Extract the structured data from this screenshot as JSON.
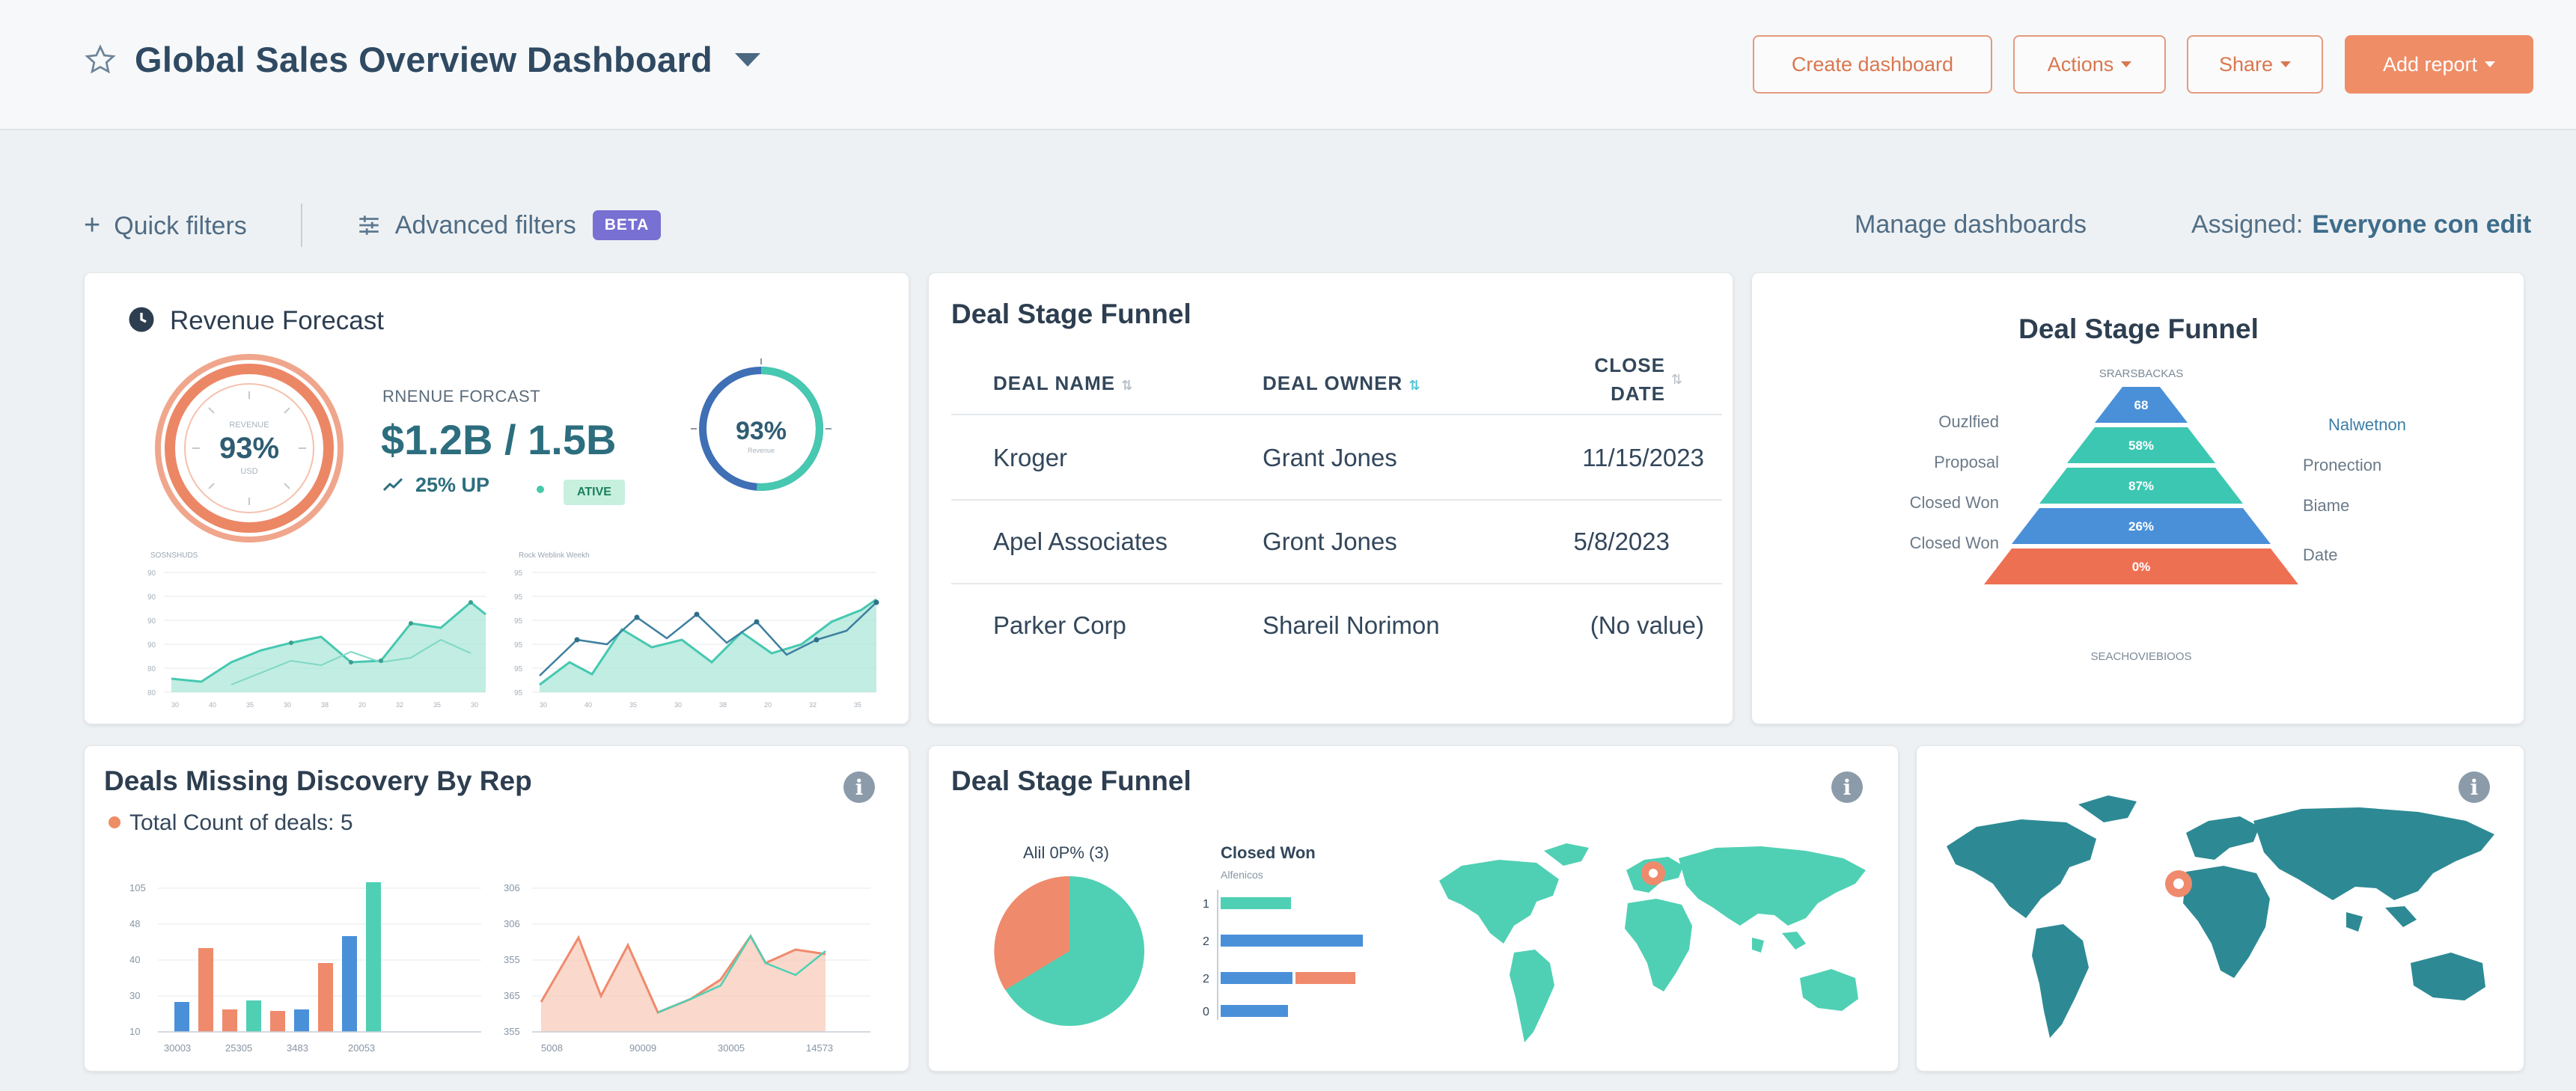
{
  "header": {
    "title": "Global Sales Overview Dashboard",
    "buttons": {
      "create": "Create dashboard",
      "actions": "Actions",
      "share": "Share",
      "add_report": "Add report"
    }
  },
  "filters": {
    "quick": "Quick filters",
    "advanced": "Advanced filters",
    "beta": "BETA",
    "manage": "Manage dashboards",
    "assigned_label": "Assigned:",
    "assigned_value": "Everyone con edit"
  },
  "revenue_card": {
    "title": "Revenue Forecast",
    "gauge_label": "93%",
    "forecast_label": "RNENUE FORCAST",
    "forecast_value": "$1.2B / 1.5B",
    "trend": "25% UP",
    "status_badge": "ATIVE",
    "ring_label": "93%",
    "ring_progress": 0.93,
    "mini_chart_left_ticks": [
      "90",
      "90",
      "90",
      "90",
      "80",
      "80"
    ],
    "mini_chart_right_ticks": [
      "95",
      "95",
      "95",
      "95",
      "95",
      "95"
    ]
  },
  "deal_table": {
    "title": "Deal Stage Funnel",
    "columns": [
      "DEAL NAME",
      "DEAL OWNER",
      "CLOSE",
      "DATE"
    ],
    "rows": [
      {
        "name": "Kroger",
        "owner": "Grant Jones",
        "date": "11/15/2023"
      },
      {
        "name": "Apel Associates",
        "owner": "Gront Jones",
        "date": "5/8/2023"
      },
      {
        "name": "Parker Corp",
        "owner": "Shareil Norimon",
        "date": "(No value)"
      }
    ]
  },
  "funnel_card": {
    "title": "Deal Stage Funnel",
    "left_labels": [
      "Ouzlfied",
      "Proposal",
      "Closed Won",
      "Closed Won"
    ],
    "right_labels": [
      "Nalwetnon",
      "Pronection",
      "Biame",
      "Date"
    ],
    "levels": [
      {
        "label": "68",
        "color": "#4a90d9"
      },
      {
        "label": "58%",
        "color": "#3cc7b2"
      },
      {
        "label": "87%",
        "color": "#3cc7b2"
      },
      {
        "label": "26%",
        "color": "#4a90d9"
      },
      {
        "label": "0%",
        "color": "#ee7053"
      }
    ]
  },
  "missing_card": {
    "title": "Deals Missing Discovery By Rep",
    "legend": "Total Count of deals: 5",
    "bar_y_ticks": [
      "105",
      "48",
      "40",
      "30",
      "10"
    ],
    "bar_x_ticks": [
      "30003",
      "25305",
      "3483",
      "20053"
    ],
    "line_y_ticks": [
      "306",
      "306",
      "355",
      "365",
      "355"
    ],
    "line_x_ticks": [
      "5008",
      "90009",
      "30005",
      "14573"
    ]
  },
  "funnel_map_card": {
    "title": "Deal Stage Funnel",
    "pie_label": "Alil 0P% (3)",
    "bar_title": "Closed Won",
    "bar_subtitle": "Alfenicos",
    "bar_rows": [
      "1",
      "2",
      "2",
      "0"
    ]
  },
  "colors": {
    "accent": "#ef8d67",
    "teal": "#3cc7b2",
    "blue": "#4a90d9",
    "coral": "#ee7053",
    "map_teal": "#2d8a94"
  }
}
